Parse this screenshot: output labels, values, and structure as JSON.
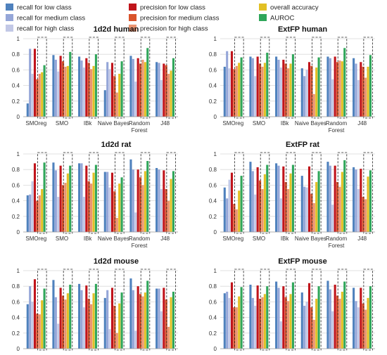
{
  "legend": [
    {
      "label": "recall for low class",
      "color": "#4f81bd"
    },
    {
      "label": "recall for medium class",
      "color": "#95a6d8"
    },
    {
      "label": "recall for high class",
      "color": "#c2c8e6"
    },
    {
      "label": "precision for low class",
      "color": "#c0141b"
    },
    {
      "label": "precision for medium class",
      "color": "#d9532b"
    },
    {
      "label": "precision for high class",
      "color": "#eb9470"
    },
    {
      "label": "overall accuracy",
      "color": "#e2c024"
    },
    {
      "label": "AUROC",
      "color": "#2fa65a"
    }
  ],
  "chart_data": [
    {
      "type": "bar",
      "title": "1d2d human",
      "categories": [
        "SMOreg",
        "SMO",
        "IBk",
        "Naive Bayes",
        "Random Forest",
        "J48"
      ],
      "ylim": [
        0,
        1
      ],
      "yticks": [
        "0",
        "0.2",
        "0.4",
        "0.6",
        "0.8",
        "1"
      ],
      "grid": true,
      "series": [
        {
          "name": "recall for low class",
          "values": [
            0.17,
            0.79,
            0.77,
            0.34,
            0.78,
            0.7
          ]
        },
        {
          "name": "recall for medium class",
          "values": [
            0.87,
            0.73,
            0.72,
            0.7,
            0.74,
            0.69
          ]
        },
        {
          "name": "recall for high class",
          "values": [
            0.55,
            0.58,
            0.63,
            0.61,
            0.45,
            0.47
          ]
        },
        {
          "name": "precision for low class",
          "values": [
            0.87,
            0.78,
            0.75,
            0.69,
            0.75,
            0.68
          ]
        },
        {
          "name": "precision for medium class",
          "values": [
            0.48,
            0.71,
            0.69,
            0.52,
            0.68,
            0.66
          ]
        },
        {
          "name": "precision for high class",
          "values": [
            0.55,
            0.64,
            0.61,
            0.31,
            0.73,
            0.55
          ]
        },
        {
          "name": "overall accuracy",
          "values": [
            0.57,
            0.65,
            0.65,
            0.55,
            0.7,
            0.59
          ]
        },
        {
          "name": "AUROC",
          "values": [
            0.66,
            0.83,
            0.8,
            0.71,
            0.88,
            0.75
          ]
        }
      ]
    },
    {
      "type": "bar",
      "title": "ExtFP human",
      "categories": [
        "SMOreg",
        "SMO",
        "IBk",
        "Naive Bayes",
        "Random Forest",
        "J48"
      ],
      "ylim": [
        0,
        1
      ],
      "yticks": [
        "0",
        "0.2",
        "0.4",
        "0.6",
        "0.8",
        "1"
      ],
      "grid": true,
      "series": [
        {
          "name": "recall for low class",
          "values": [
            0.64,
            0.77,
            0.77,
            0.62,
            0.77,
            0.75
          ]
        },
        {
          "name": "recall for medium class",
          "values": [
            0.84,
            0.75,
            0.73,
            0.52,
            0.75,
            0.68
          ]
        },
        {
          "name": "recall for high class",
          "values": [
            0.62,
            0.52,
            0.63,
            0.6,
            0.48,
            0.47
          ]
        },
        {
          "name": "precision for low class",
          "values": [
            0.84,
            0.77,
            0.73,
            0.7,
            0.77,
            0.7
          ]
        },
        {
          "name": "precision for medium class",
          "values": [
            0.61,
            0.68,
            0.68,
            0.65,
            0.7,
            0.64
          ]
        },
        {
          "name": "precision for high class",
          "values": [
            0.65,
            0.64,
            0.62,
            0.29,
            0.72,
            0.5
          ]
        },
        {
          "name": "overall accuracy",
          "values": [
            0.69,
            0.69,
            0.68,
            0.63,
            0.71,
            0.64
          ]
        },
        {
          "name": "AUROC",
          "values": [
            0.76,
            0.82,
            0.8,
            0.76,
            0.88,
            0.79
          ]
        }
      ]
    },
    {
      "type": "bar",
      "title": "1d2d rat",
      "categories": [
        "SMOreg",
        "SMO",
        "IBk",
        "Naive Bayes",
        "Random Forest",
        "J48"
      ],
      "ylim": [
        0,
        1
      ],
      "yticks": [
        "0",
        "0.2",
        "0.4",
        "0.6",
        "0.8",
        "1"
      ],
      "grid": true,
      "series": [
        {
          "name": "recall for low class",
          "values": [
            0.47,
            0.89,
            0.88,
            0.77,
            0.93,
            0.82
          ]
        },
        {
          "name": "recall for medium class",
          "values": [
            0.48,
            0.79,
            0.88,
            0.77,
            0.8,
            0.8
          ]
        },
        {
          "name": "recall for high class",
          "values": [
            0.65,
            0.45,
            0.45,
            0.57,
            0.25,
            0.55
          ]
        },
        {
          "name": "precision for low class",
          "values": [
            0.88,
            0.85,
            0.85,
            0.76,
            0.8,
            0.79
          ]
        },
        {
          "name": "precision for medium class",
          "values": [
            0.4,
            0.6,
            0.65,
            0.52,
            0.7,
            0.55
          ]
        },
        {
          "name": "precision for high class",
          "values": [
            0.47,
            0.63,
            0.62,
            0.18,
            0.6,
            0.4
          ]
        },
        {
          "name": "overall accuracy",
          "values": [
            0.55,
            0.75,
            0.76,
            0.62,
            0.78,
            0.68
          ]
        },
        {
          "name": "AUROC",
          "values": [
            0.89,
            0.85,
            0.86,
            0.7,
            0.91,
            0.78
          ]
        }
      ]
    },
    {
      "type": "bar",
      "title": "ExtFP rat",
      "categories": [
        "SMOreg",
        "SMO",
        "IBk",
        "Naive Bayes",
        "Random Forest",
        "J48"
      ],
      "ylim": [
        0,
        1
      ],
      "yticks": [
        "0",
        "0.2",
        "0.4",
        "0.6",
        "0.8",
        "1"
      ],
      "grid": true,
      "series": [
        {
          "name": "recall for low class",
          "values": [
            0.57,
            0.9,
            0.88,
            0.72,
            0.9,
            0.83
          ]
        },
        {
          "name": "recall for medium class",
          "values": [
            0.43,
            0.78,
            0.85,
            0.58,
            0.85,
            0.8
          ]
        },
        {
          "name": "recall for high class",
          "values": [
            0.67,
            0.48,
            0.43,
            0.57,
            0.35,
            0.55
          ]
        },
        {
          "name": "precision for low class",
          "values": [
            0.76,
            0.83,
            0.84,
            0.84,
            0.85,
            0.81
          ]
        },
        {
          "name": "precision for medium class",
          "values": [
            0.36,
            0.66,
            0.64,
            0.49,
            0.64,
            0.45
          ]
        },
        {
          "name": "precision for high class",
          "values": [
            0.29,
            0.55,
            0.55,
            0.37,
            0.58,
            0.42
          ]
        },
        {
          "name": "overall accuracy",
          "values": [
            0.53,
            0.74,
            0.75,
            0.64,
            0.77,
            0.71
          ]
        },
        {
          "name": "AUROC",
          "values": [
            0.72,
            0.86,
            0.86,
            0.78,
            0.92,
            0.79
          ]
        }
      ]
    },
    {
      "type": "bar",
      "title": "1d2d mouse",
      "categories": [
        "SMOreg",
        "SMO",
        "IBk",
        "Naive Bayes",
        "Random Forest",
        "J48"
      ],
      "ylim": [
        0,
        1
      ],
      "yticks": [
        "0",
        "0.2",
        "0.4",
        "0.6",
        "0.8",
        "1"
      ],
      "grid": true,
      "series": [
        {
          "name": "recall for low class",
          "values": [
            0.57,
            0.88,
            0.83,
            0.65,
            0.9,
            0.77
          ]
        },
        {
          "name": "recall for medium class",
          "values": [
            0.8,
            0.66,
            0.75,
            0.75,
            0.75,
            0.77
          ]
        },
        {
          "name": "recall for high class",
          "values": [
            0.6,
            0.32,
            0.53,
            0.25,
            0.23,
            0.48
          ]
        },
        {
          "name": "precision for low class",
          "values": [
            0.89,
            0.78,
            0.81,
            0.78,
            0.8,
            0.78
          ]
        },
        {
          "name": "precision for medium class",
          "values": [
            0.45,
            0.68,
            0.64,
            0.55,
            0.7,
            0.63
          ]
        },
        {
          "name": "precision for high class",
          "values": [
            0.44,
            0.63,
            0.57,
            0.2,
            0.67,
            0.28
          ]
        },
        {
          "name": "overall accuracy",
          "values": [
            0.62,
            0.71,
            0.71,
            0.58,
            0.72,
            0.66
          ]
        },
        {
          "name": "AUROC",
          "values": [
            0.77,
            0.82,
            0.83,
            0.72,
            0.87,
            0.73
          ]
        }
      ]
    },
    {
      "type": "bar",
      "title": "ExtFP mouse",
      "categories": [
        "SMOreg",
        "SMO",
        "IBk",
        "Naive Bayes",
        "Random Forest",
        "J48"
      ],
      "ylim": [
        0,
        1
      ],
      "yticks": [
        "0",
        "0.2",
        "0.4",
        "0.6",
        "0.8",
        "1"
      ],
      "grid": true,
      "series": [
        {
          "name": "recall for low class",
          "values": [
            0.71,
            0.82,
            0.86,
            0.72,
            0.87,
            0.78
          ]
        },
        {
          "name": "recall for medium class",
          "values": [
            0.73,
            0.65,
            0.78,
            0.55,
            0.76,
            0.61
          ]
        },
        {
          "name": "recall for high class",
          "values": [
            0.65,
            0.55,
            0.35,
            0.6,
            0.48,
            0.53
          ]
        },
        {
          "name": "precision for low class",
          "values": [
            0.85,
            0.81,
            0.8,
            0.84,
            0.82,
            0.78
          ]
        },
        {
          "name": "precision for medium class",
          "values": [
            0.53,
            0.64,
            0.66,
            0.53,
            0.68,
            0.58
          ]
        },
        {
          "name": "precision for high class",
          "values": [
            0.53,
            0.66,
            0.61,
            0.37,
            0.64,
            0.5
          ]
        },
        {
          "name": "overall accuracy",
          "values": [
            0.67,
            0.7,
            0.7,
            0.64,
            0.73,
            0.65
          ]
        },
        {
          "name": "AUROC",
          "values": [
            0.79,
            0.8,
            0.85,
            0.8,
            0.86,
            0.8
          ]
        }
      ]
    }
  ]
}
